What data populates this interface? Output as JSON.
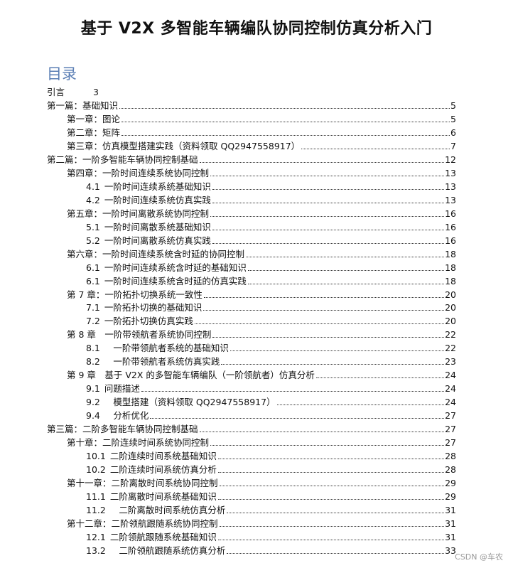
{
  "title": "基于 V2X 多智能车辆编队协同控制仿真分析入门",
  "toc_heading": "目录",
  "toc": [
    {
      "level": 0,
      "num": "",
      "text": "引言",
      "page": "3",
      "leader": false
    },
    {
      "level": 0,
      "num": "",
      "text": "第一篇：基础知识",
      "page": "5",
      "leader": true
    },
    {
      "level": 1,
      "num": "",
      "text": "第一章：图论",
      "page": "5",
      "leader": true
    },
    {
      "level": 1,
      "num": "",
      "text": "第二章：矩阵",
      "page": "6",
      "leader": true
    },
    {
      "level": 1,
      "num": "",
      "text": "第三章：仿真模型搭建实践（资料领取 QQ2947558917）",
      "page": "7",
      "leader": true
    },
    {
      "level": 0,
      "num": "",
      "text": "第二篇：一阶多智能车辆协同控制基础",
      "page": "12",
      "leader": true
    },
    {
      "level": 1,
      "num": "",
      "text": "第四章：一阶时间连续系统协同控制",
      "page": "13",
      "leader": true
    },
    {
      "level": 2,
      "num": "4.1",
      "text": "一阶时间连续系统基础知识",
      "page": "13",
      "leader": true
    },
    {
      "level": 2,
      "num": "4.2",
      "text": "一阶时间连续系统仿真实践",
      "page": "13",
      "leader": true
    },
    {
      "level": 1,
      "num": "",
      "text": "第五章：一阶时间离散系统协同控制",
      "page": "16",
      "leader": true
    },
    {
      "level": 2,
      "num": "5.1",
      "text": "一阶时间离散系统基础知识",
      "page": "16",
      "leader": true
    },
    {
      "level": 2,
      "num": "5.2",
      "text": "一阶时间离散系统仿真实践",
      "page": "16",
      "leader": true
    },
    {
      "level": 1,
      "num": "",
      "text": "第六章：一阶时间连续系统含时延的协同控制",
      "page": "18",
      "leader": true
    },
    {
      "level": 2,
      "num": "6.1",
      "text": "一阶时间连续系统含时延的基础知识",
      "page": "18",
      "leader": true
    },
    {
      "level": 2,
      "num": "6.1",
      "text": "一阶时间连续系统含时延的仿真实践",
      "page": "18",
      "leader": true
    },
    {
      "level": 1,
      "num": "",
      "text": "第 7 章：一阶拓扑切换系统一致性",
      "page": "20",
      "leader": true
    },
    {
      "level": 2,
      "num": "7.1",
      "text": "一阶拓扑切换的基础知识",
      "page": "20",
      "leader": true
    },
    {
      "level": 2,
      "num": "7.2",
      "text": "一阶拓扑切换仿真实践",
      "page": "20",
      "leader": true
    },
    {
      "level": 1,
      "num": "",
      "text": "第 8 章　一阶带领航者系统协同控制",
      "page": "22",
      "leader": true
    },
    {
      "level": 2,
      "num": "8.1",
      "text": "　一阶带领航者系统的基础知识",
      "page": "22",
      "leader": true
    },
    {
      "level": 2,
      "num": "8.2",
      "text": "　一阶带领航者系统仿真实践",
      "page": "23",
      "leader": true
    },
    {
      "level": 1,
      "num": "",
      "text": "第 9 章　基于 V2X 的多智能车辆编队（一阶领航者）仿真分析",
      "page": "24",
      "leader": true
    },
    {
      "level": 2,
      "num": "9.1",
      "text": "问题描述",
      "page": "24",
      "leader": true
    },
    {
      "level": 2,
      "num": "9.2",
      "text": "　模型搭建（资料领取 QQ2947558917）",
      "page": "24",
      "leader": true
    },
    {
      "level": 2,
      "num": "9.4",
      "text": "　分析优化",
      "page": "27",
      "leader": true
    },
    {
      "level": 0,
      "num": "",
      "text": "第三篇：二阶多智能车辆协同控制基础",
      "page": "27",
      "leader": true
    },
    {
      "level": 1,
      "num": "",
      "text": "第十章：二阶连续时间系统协同控制",
      "page": "27",
      "leader": true
    },
    {
      "level": 2,
      "num": "10.1",
      "text": "二阶连续时间系统基础知识",
      "page": "28",
      "leader": true
    },
    {
      "level": 2,
      "num": "10.2",
      "text": "二阶连续时间系统仿真分析",
      "page": "28",
      "leader": true
    },
    {
      "level": 1,
      "num": "",
      "text": "第十一章：二阶离散时间系统协同控制",
      "page": "29",
      "leader": true
    },
    {
      "level": 2,
      "num": "11.1",
      "text": "二阶离散时间系统基础知识",
      "page": "29",
      "leader": true
    },
    {
      "level": 2,
      "num": "11.2",
      "text": "　二阶离散时间系统仿真分析",
      "page": "31",
      "leader": true
    },
    {
      "level": 1,
      "num": "",
      "text": "第十二章：二阶领航跟随系统协同控制",
      "page": "31",
      "leader": true
    },
    {
      "level": 2,
      "num": "12.1",
      "text": "二阶领航跟随系统基础知识",
      "page": "31",
      "leader": true
    },
    {
      "level": 2,
      "num": "13.2",
      "text": "　二阶领航跟随系统仿真分析",
      "page": "33",
      "leader": true
    }
  ],
  "watermark": "CSDN @车农",
  "colors": {
    "toc_heading": "#5b7fb5"
  }
}
